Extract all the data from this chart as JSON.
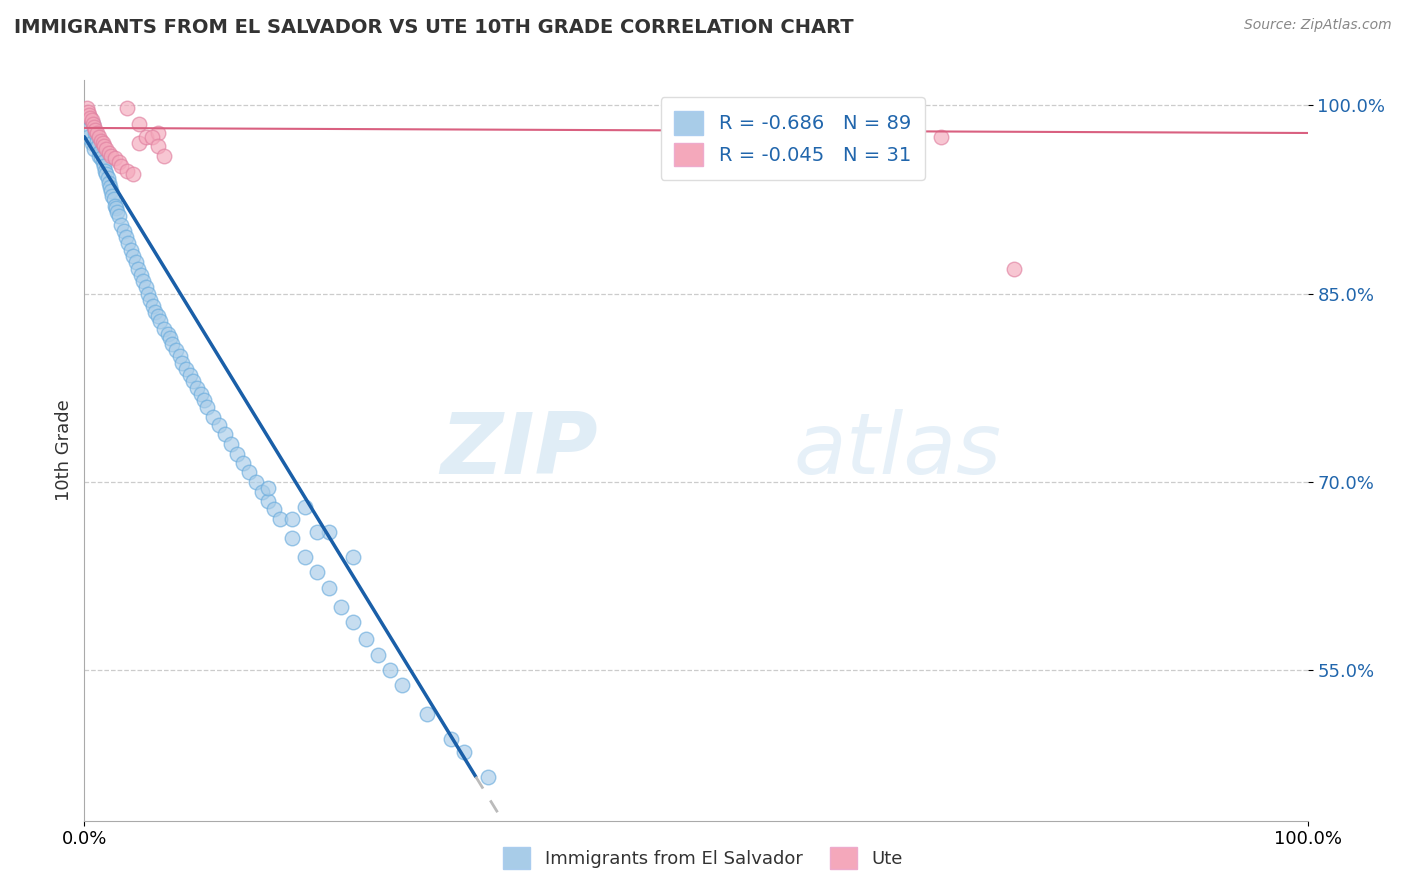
{
  "title": "IMMIGRANTS FROM EL SALVADOR VS UTE 10TH GRADE CORRELATION CHART",
  "source_text": "Source: ZipAtlas.com",
  "ylabel": "10th Grade",
  "xlim": [
    0.0,
    1.0
  ],
  "ylim": [
    0.43,
    1.02
  ],
  "yticks": [
    0.55,
    0.7,
    0.85,
    1.0
  ],
  "ytick_labels": [
    "55.0%",
    "70.0%",
    "85.0%",
    "100.0%"
  ],
  "xtick_labels": [
    "0.0%",
    "100.0%"
  ],
  "legend_blue_label": "Immigrants from El Salvador",
  "legend_pink_label": "Ute",
  "R_blue": -0.686,
  "N_blue": 89,
  "R_pink": -0.045,
  "N_pink": 31,
  "blue_color": "#a8cce8",
  "pink_color": "#f4a8bb",
  "blue_line_color": "#1a5fa8",
  "pink_line_color": "#d96080",
  "watermark_zip": "ZIP",
  "watermark_atlas": "atlas",
  "blue_scatter_x": [
    0.002,
    0.003,
    0.005,
    0.006,
    0.007,
    0.008,
    0.009,
    0.01,
    0.011,
    0.012,
    0.013,
    0.014,
    0.015,
    0.016,
    0.017,
    0.018,
    0.019,
    0.02,
    0.021,
    0.022,
    0.023,
    0.024,
    0.025,
    0.026,
    0.027,
    0.028,
    0.03,
    0.032,
    0.034,
    0.036,
    0.038,
    0.04,
    0.042,
    0.044,
    0.046,
    0.048,
    0.05,
    0.052,
    0.054,
    0.056,
    0.058,
    0.06,
    0.062,
    0.065,
    0.068,
    0.07,
    0.072,
    0.075,
    0.078,
    0.08,
    0.083,
    0.086,
    0.089,
    0.092,
    0.095,
    0.098,
    0.1,
    0.105,
    0.11,
    0.115,
    0.12,
    0.125,
    0.13,
    0.135,
    0.14,
    0.145,
    0.15,
    0.155,
    0.16,
    0.17,
    0.18,
    0.19,
    0.2,
    0.21,
    0.22,
    0.23,
    0.24,
    0.25,
    0.26,
    0.28,
    0.3,
    0.31,
    0.33,
    0.18,
    0.2,
    0.22,
    0.19,
    0.17,
    0.15
  ],
  "blue_scatter_y": [
    0.98,
    0.975,
    0.99,
    0.97,
    0.985,
    0.965,
    0.978,
    0.972,
    0.968,
    0.96,
    0.963,
    0.958,
    0.955,
    0.952,
    0.948,
    0.945,
    0.942,
    0.938,
    0.935,
    0.932,
    0.928,
    0.925,
    0.92,
    0.918,
    0.915,
    0.912,
    0.905,
    0.9,
    0.895,
    0.89,
    0.885,
    0.88,
    0.875,
    0.87,
    0.865,
    0.86,
    0.855,
    0.85,
    0.845,
    0.84,
    0.835,
    0.832,
    0.828,
    0.822,
    0.818,
    0.815,
    0.81,
    0.805,
    0.8,
    0.795,
    0.79,
    0.785,
    0.78,
    0.775,
    0.77,
    0.765,
    0.76,
    0.752,
    0.745,
    0.738,
    0.73,
    0.722,
    0.715,
    0.708,
    0.7,
    0.692,
    0.685,
    0.678,
    0.67,
    0.655,
    0.64,
    0.628,
    0.615,
    0.6,
    0.588,
    0.575,
    0.562,
    0.55,
    0.538,
    0.515,
    0.495,
    0.485,
    0.465,
    0.68,
    0.66,
    0.64,
    0.66,
    0.67,
    0.695
  ],
  "pink_scatter_x": [
    0.002,
    0.003,
    0.004,
    0.005,
    0.006,
    0.007,
    0.008,
    0.009,
    0.01,
    0.012,
    0.014,
    0.015,
    0.016,
    0.018,
    0.02,
    0.022,
    0.025,
    0.028,
    0.03,
    0.035,
    0.04,
    0.045,
    0.05,
    0.06,
    0.035,
    0.045,
    0.055,
    0.06,
    0.065,
    0.7,
    0.76
  ],
  "pink_scatter_y": [
    0.998,
    0.995,
    0.992,
    0.99,
    0.988,
    0.985,
    0.983,
    0.98,
    0.978,
    0.975,
    0.972,
    0.97,
    0.968,
    0.965,
    0.962,
    0.96,
    0.958,
    0.955,
    0.952,
    0.948,
    0.945,
    0.97,
    0.975,
    0.978,
    0.998,
    0.985,
    0.975,
    0.968,
    0.96,
    0.975,
    0.87
  ]
}
